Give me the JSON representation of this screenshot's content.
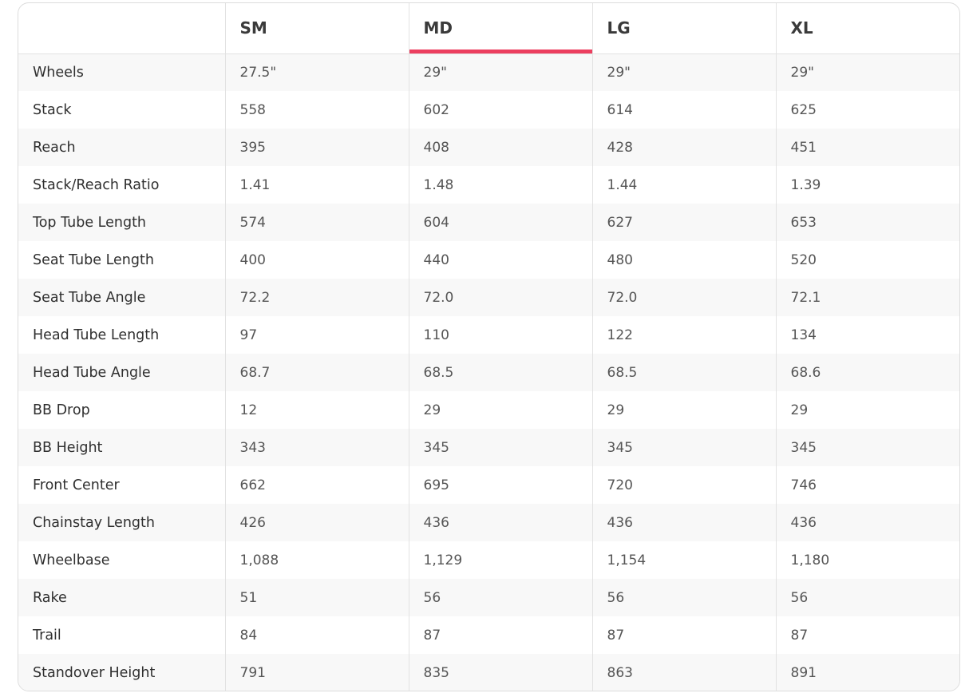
{
  "table": {
    "columns": [
      "SM",
      "MD",
      "LG",
      "XL"
    ],
    "selected_column": 1,
    "rows": [
      {
        "label": "Wheels",
        "values": [
          "27.5\"",
          "29\"",
          "29\"",
          "29\""
        ]
      },
      {
        "label": "Stack",
        "values": [
          "558",
          "602",
          "614",
          "625"
        ]
      },
      {
        "label": "Reach",
        "values": [
          "395",
          "408",
          "428",
          "451"
        ]
      },
      {
        "label": "Stack/Reach Ratio",
        "values": [
          "1.41",
          "1.48",
          "1.44",
          "1.39"
        ]
      },
      {
        "label": "Top Tube Length",
        "values": [
          "574",
          "604",
          "627",
          "653"
        ]
      },
      {
        "label": "Seat Tube Length",
        "values": [
          "400",
          "440",
          "480",
          "520"
        ]
      },
      {
        "label": "Seat Tube Angle",
        "values": [
          "72.2",
          "72.0",
          "72.0",
          "72.1"
        ]
      },
      {
        "label": "Head Tube Length",
        "values": [
          "97",
          "110",
          "122",
          "134"
        ]
      },
      {
        "label": "Head Tube Angle",
        "values": [
          "68.7",
          "68.5",
          "68.5",
          "68.6"
        ]
      },
      {
        "label": "BB Drop",
        "values": [
          "12",
          "29",
          "29",
          "29"
        ]
      },
      {
        "label": "BB Height",
        "values": [
          "343",
          "345",
          "345",
          "345"
        ]
      },
      {
        "label": "Front Center",
        "values": [
          "662",
          "695",
          "720",
          "746"
        ]
      },
      {
        "label": "Chainstay Length",
        "values": [
          "426",
          "436",
          "436",
          "436"
        ]
      },
      {
        "label": "Wheelbase",
        "values": [
          "1,088",
          "1,129",
          "1,154",
          "1,180"
        ]
      },
      {
        "label": "Rake",
        "values": [
          "51",
          "56",
          "56",
          "56"
        ]
      },
      {
        "label": "Trail",
        "values": [
          "84",
          "87",
          "87",
          "87"
        ]
      },
      {
        "label": "Standover Height",
        "values": [
          "791",
          "835",
          "863",
          "891"
        ]
      }
    ]
  }
}
